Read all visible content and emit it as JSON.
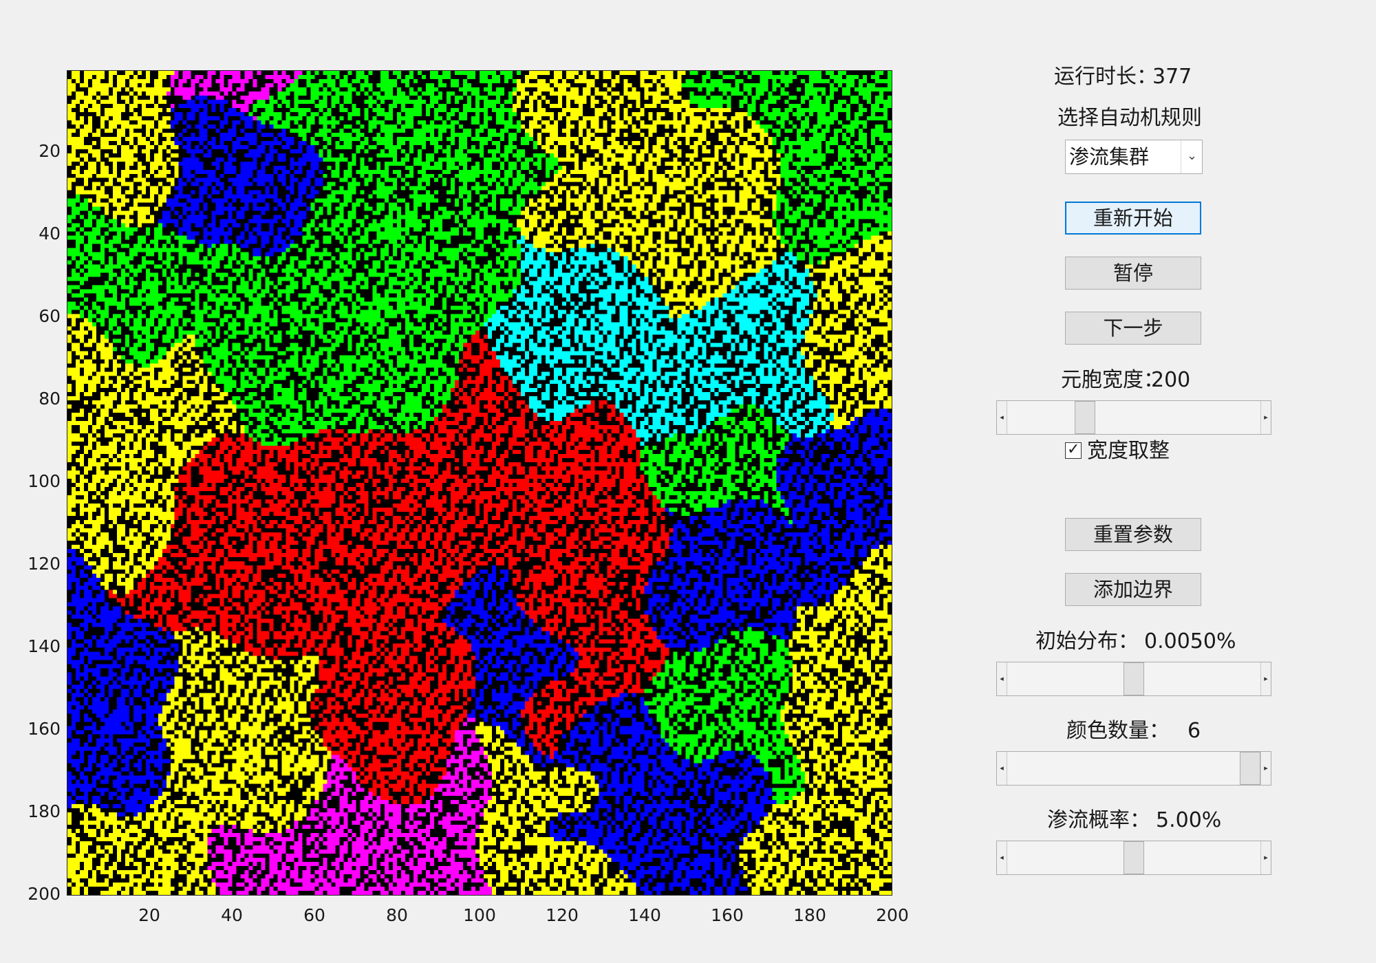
{
  "grid": {
    "size": 200,
    "palette": {
      "background": "#000000",
      "yellow": "#ffff00",
      "green": "#00ff00",
      "blue": "#0000ff",
      "magenta": "#ff00ff",
      "cyan": "#00ffff",
      "red": "#ff0000"
    },
    "x_ticks": [
      "20",
      "40",
      "60",
      "80",
      "100",
      "120",
      "140",
      "160",
      "180",
      "200"
    ],
    "y_ticks": [
      "20",
      "40",
      "60",
      "80",
      "100",
      "120",
      "140",
      "160",
      "180",
      "200"
    ]
  },
  "controls": {
    "runtime_label": "运行时长：",
    "runtime_value": "377",
    "rule_label": "选择自动机规则",
    "rule_selected": "渗流集群",
    "restart_button": "重新开始",
    "pause_button": "暂停",
    "next_step_button": "下一步",
    "cell_width_label": "元胞宽度：",
    "cell_width_value": "200",
    "round_width_checkbox": "宽度取整",
    "round_width_checked": true,
    "reset_params_button": "重置参数",
    "add_border_button": "添加边界",
    "init_dist_label": "初始分布：",
    "init_dist_value": "0.0050%",
    "color_count_label": "颜色数量：",
    "color_count_value": "6",
    "perc_prob_label": "渗流概率：",
    "perc_prob_value": "5.00%"
  },
  "sliders": {
    "cell_width_level": 0.29,
    "init_dist_level": 0.5,
    "color_count_level": 1.0,
    "perc_prob_level": 0.5
  }
}
